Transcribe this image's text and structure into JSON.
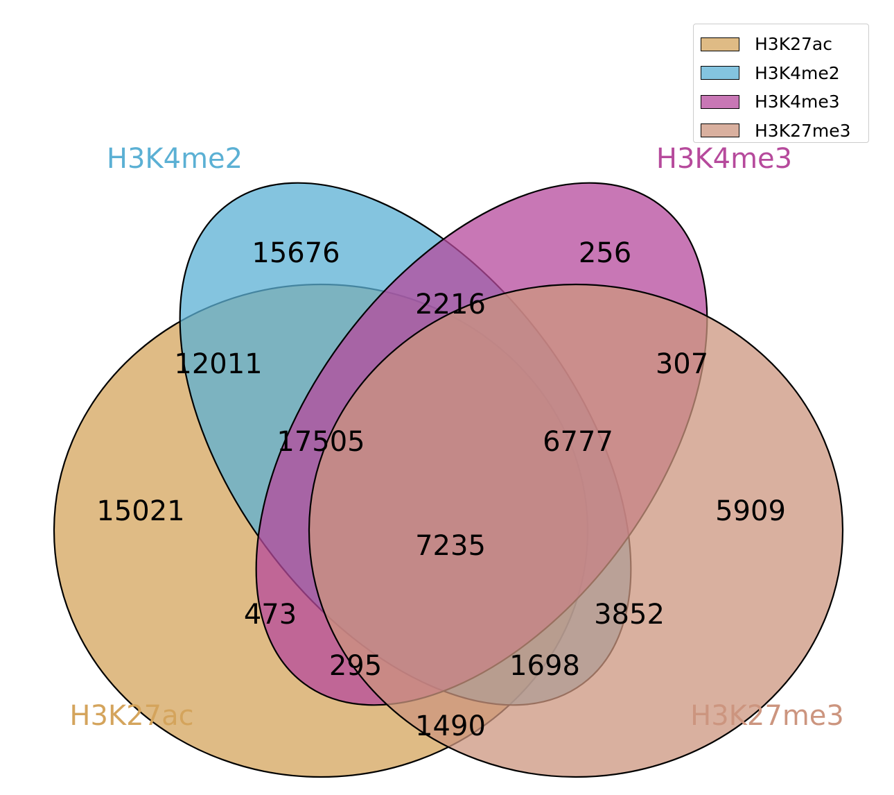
{
  "sets": [
    {
      "name": "H3K27ac",
      "color": "#D4A45C"
    },
    {
      "name": "H3K4me2",
      "color": "#5BB0D4"
    },
    {
      "name": "H3K4me3",
      "color": "#B64A9C"
    },
    {
      "name": "H3K27me3",
      "color": "#CC957F"
    }
  ],
  "legend": {
    "placement": "top-right"
  },
  "regions": [
    {
      "sets": [
        "H3K4me2"
      ],
      "count": "15676"
    },
    {
      "sets": [
        "H3K4me3"
      ],
      "count": "256"
    },
    {
      "sets": [
        "H3K4me2",
        "H3K4me3"
      ],
      "count": "2216"
    },
    {
      "sets": [
        "H3K27ac",
        "H3K4me2"
      ],
      "count": "12011"
    },
    {
      "sets": [
        "H3K4me3",
        "H3K27me3"
      ],
      "count": "307"
    },
    {
      "sets": [
        "H3K27ac",
        "H3K4me2",
        "H3K4me3"
      ],
      "count": "17505"
    },
    {
      "sets": [
        "H3K4me2",
        "H3K4me3",
        "H3K27me3"
      ],
      "count": "6777"
    },
    {
      "sets": [
        "H3K27ac"
      ],
      "count": "15021"
    },
    {
      "sets": [
        "H3K27me3"
      ],
      "count": "5909"
    },
    {
      "sets": [
        "H3K27ac",
        "H3K4me2",
        "H3K4me3",
        "H3K27me3"
      ],
      "count": "7235"
    },
    {
      "sets": [
        "H3K27ac",
        "H3K4me3"
      ],
      "count": "473"
    },
    {
      "sets": [
        "H3K4me2",
        "H3K27me3"
      ],
      "count": "3852"
    },
    {
      "sets": [
        "H3K27ac",
        "H3K4me3",
        "H3K27me3"
      ],
      "count": "295"
    },
    {
      "sets": [
        "H3K27ac",
        "H3K4me2",
        "H3K27me3"
      ],
      "count": "1698"
    },
    {
      "sets": [
        "H3K27ac",
        "H3K27me3"
      ],
      "count": "1490"
    }
  ]
}
